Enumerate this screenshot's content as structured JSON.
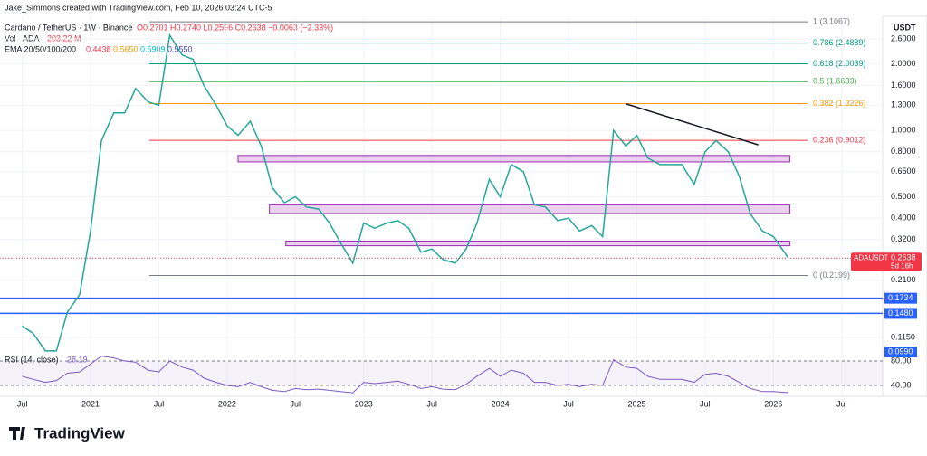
{
  "header": {
    "credit": "Jake_Simmons created with TradingView.com, Feb 10, 2026 03:24 UTC-5",
    "symbol": "Cardano / TetherUS · 1W · Binance",
    "ohlc": "O0.2701 H0.2740 L0.2596 C0.2638 −0.0063 (−2.33%)",
    "volume_label": "Vol · ADA",
    "volume_value": "203.22 M",
    "ema_label": "EMA 20/50/100/200",
    "ema_values": [
      {
        "text": "0.4438",
        "color": "#f23645"
      },
      {
        "text": "0.5650",
        "color": "#ff9800"
      },
      {
        "text": "0.5909",
        "color": "#00bcd4"
      },
      {
        "text": "0.5550",
        "color": "#3f3fbf"
      }
    ],
    "currency": "USDT",
    "logo": "TradingView"
  },
  "chart_data": {
    "type": "line",
    "log_scale": true,
    "color": "#26a69a",
    "x": [
      2020.5,
      2020.58,
      2020.67,
      2020.75,
      2020.83,
      2020.92,
      2021.0,
      2021.08,
      2021.17,
      2021.25,
      2021.33,
      2021.42,
      2021.5,
      2021.58,
      2021.67,
      2021.75,
      2021.83,
      2021.92,
      2022.0,
      2022.08,
      2022.17,
      2022.25,
      2022.33,
      2022.42,
      2022.5,
      2022.58,
      2022.67,
      2022.75,
      2022.83,
      2022.92,
      2023.0,
      2023.08,
      2023.17,
      2023.25,
      2023.33,
      2023.42,
      2023.5,
      2023.58,
      2023.67,
      2023.75,
      2023.83,
      2023.92,
      2024.0,
      2024.08,
      2024.17,
      2024.25,
      2024.33,
      2024.42,
      2024.5,
      2024.58,
      2024.67,
      2024.75,
      2024.83,
      2024.92,
      2025.0,
      2025.08,
      2025.17,
      2025.25,
      2025.33,
      2025.42,
      2025.5,
      2025.58,
      2025.67,
      2025.75,
      2025.83,
      2025.92,
      2026.0,
      2026.11
    ],
    "values": [
      0.13,
      0.12,
      0.1,
      0.1,
      0.15,
      0.18,
      0.35,
      0.9,
      1.2,
      1.2,
      1.55,
      1.35,
      1.3,
      2.7,
      2.2,
      2.1,
      1.6,
      1.3,
      1.05,
      0.95,
      1.1,
      0.85,
      0.55,
      0.47,
      0.5,
      0.45,
      0.44,
      0.38,
      0.31,
      0.25,
      0.38,
      0.36,
      0.38,
      0.39,
      0.36,
      0.28,
      0.29,
      0.26,
      0.25,
      0.29,
      0.38,
      0.6,
      0.5,
      0.7,
      0.65,
      0.46,
      0.45,
      0.39,
      0.4,
      0.35,
      0.37,
      0.33,
      1.0,
      0.85,
      0.95,
      0.75,
      0.7,
      0.7,
      0.7,
      0.57,
      0.8,
      0.9,
      0.8,
      0.62,
      0.42,
      0.35,
      0.33,
      0.2638
    ],
    "xlim": [
      2020.337,
      2026.8
    ],
    "xticks": [
      {
        "value": 2020.5,
        "label": "Jul"
      },
      2021,
      {
        "value": 2021.5,
        "label": "Jul"
      },
      2022,
      {
        "value": 2022.5,
        "label": "Jul"
      },
      2023,
      {
        "value": 2023.5,
        "label": "Jul"
      },
      2024,
      {
        "value": 2024.5,
        "label": "Jul"
      },
      2025,
      {
        "value": 2025.5,
        "label": "Jul"
      },
      2026,
      {
        "value": 2026.5,
        "label": "Jul"
      }
    ],
    "ylim": [
      0.099,
      3.17
    ],
    "yticks": [
      {
        "value": 2.6,
        "label": "2.6000"
      },
      {
        "value": 2,
        "label": "2.0000"
      },
      {
        "value": 1.6,
        "label": "1.6000"
      },
      {
        "value": 1.3,
        "label": "1.3000"
      },
      {
        "value": 1,
        "label": "1.0000"
      },
      {
        "value": 0.8,
        "label": "0.8000"
      },
      {
        "value": 0.65,
        "label": "0.6500"
      },
      {
        "value": 0.5,
        "label": "0.5000"
      },
      {
        "value": 0.4,
        "label": "0.4000"
      },
      {
        "value": 0.32,
        "label": "0.3200"
      },
      {
        "value": 0.21,
        "label": "0.2100"
      },
      {
        "value": 0.115,
        "label": "0.1150"
      }
    ],
    "fib": [
      {
        "value": 3.1067,
        "label": "1 (3.1067)",
        "color": "#787b86"
      },
      {
        "value": 2.4889,
        "label": "0.786 (2.4889)",
        "color": "#089981"
      },
      {
        "value": 2.0039,
        "label": "0.618 (2.0039)",
        "color": "#089981"
      },
      {
        "value": 1.6633,
        "label": "0.5 (1.6633)",
        "color": "#4caf50"
      },
      {
        "value": 1.3226,
        "label": "0.382 (1.3226)",
        "color": "#ff9800"
      },
      {
        "value": 0.9012,
        "label": "0.236 (0.9012)",
        "color": "#f23645"
      },
      {
        "value": 0.2199,
        "label": "0 (0.2199)",
        "color": "#787b86"
      }
    ],
    "fib_from": 2021.43,
    "zones": [
      {
        "from": 2022.08,
        "low": 0.72,
        "high": 0.77
      },
      {
        "from": 2022.31,
        "low": 0.42,
        "high": 0.46
      },
      {
        "from": 2022.43,
        "low": 0.3,
        "high": 0.315
      }
    ],
    "zones_to": 2026.12,
    "trendline": {
      "x": [
        2024.92,
        2025.89
      ],
      "values": [
        1.32,
        0.86
      ]
    },
    "levels": [
      {
        "value": 0.1734,
        "label": "0.1734"
      },
      {
        "value": 0.148,
        "label": "0.1480"
      }
    ],
    "tag": {
      "value": 0.099,
      "label": "0.0990"
    },
    "last": {
      "symbol": "ADAUSDT",
      "value": 0.2638,
      "label": "0.2638",
      "countdown": "5d 16h"
    },
    "rsi": {
      "title": "RSI (14, close)",
      "last": "28.19",
      "ylim": [
        26.7,
        93.3
      ],
      "yticks": [
        {
          "value": 80,
          "label": "80.00"
        },
        {
          "value": 40,
          "label": "40.00"
        }
      ],
      "values": [
        55,
        50,
        45,
        48,
        60,
        62,
        75,
        88,
        85,
        80,
        78,
        65,
        62,
        80,
        70,
        65,
        52,
        45,
        40,
        38,
        45,
        38,
        32,
        30,
        35,
        33,
        34,
        32,
        30,
        28,
        45,
        43,
        45,
        47,
        42,
        35,
        38,
        34,
        33,
        42,
        55,
        68,
        55,
        65,
        60,
        45,
        45,
        40,
        42,
        38,
        42,
        40,
        82,
        70,
        68,
        55,
        50,
        50,
        50,
        45,
        58,
        60,
        55,
        45,
        35,
        30,
        30,
        28.19
      ]
    }
  }
}
